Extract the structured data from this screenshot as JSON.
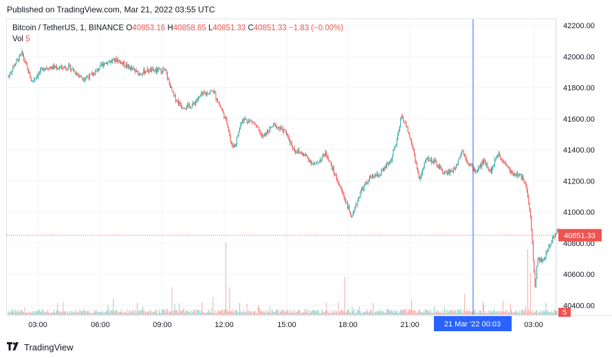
{
  "header": {
    "published": "Published on TradingView.com, Mar 21, 2022 03:55 UTC"
  },
  "legend": {
    "symbol": "Bitcoin / TetherUS, 1, BINANCE",
    "o_label": "O",
    "o_value": "40853.16",
    "h_label": "H",
    "h_value": "40858.65",
    "l_label": "L",
    "l_value": "40851.33",
    "c_label": "C",
    "c_value": "40851.33",
    "change": "−1.83 (−0.00%)",
    "vol_label": "Vol",
    "vol_value": "5"
  },
  "footer": {
    "brand": "TradingView",
    "logo_icon": "tradingview-logo-icon"
  },
  "colors": {
    "up": "#26a69a",
    "down": "#ef5350",
    "crosshair": "#2962ff",
    "last_price": "#ef5350"
  },
  "chart_data": {
    "type": "candlestick",
    "title": "Bitcoin / TetherUS, 1, BINANCE",
    "interval": "1",
    "exchange": "BINANCE",
    "ylim": [
      40340,
      42240
    ],
    "y_ticks": [
      "42200.00",
      "42000.00",
      "41800.00",
      "41600.00",
      "41400.00",
      "41200.00",
      "41000.00",
      "40800.00",
      "40600.00",
      "40400.00"
    ],
    "x_ticks": [
      "03:00",
      "06:00",
      "09:00",
      "12:00",
      "15:00",
      "18:00",
      "21:00",
      "03:00"
    ],
    "last_price": "40851.33",
    "last_volume": "5",
    "crosshair_label": "21 Mar '22   00:03",
    "grid": true,
    "price_path": [
      [
        0,
        41870
      ],
      [
        8,
        41940
      ],
      [
        20,
        42020
      ],
      [
        34,
        41840
      ],
      [
        52,
        41930
      ],
      [
        72,
        41930
      ],
      [
        90,
        41930
      ],
      [
        108,
        41860
      ],
      [
        122,
        41880
      ],
      [
        140,
        41960
      ],
      [
        158,
        41980
      ],
      [
        176,
        41930
      ],
      [
        190,
        41890
      ],
      [
        202,
        41910
      ],
      [
        216,
        41910
      ],
      [
        228,
        41910
      ],
      [
        240,
        41750
      ],
      [
        252,
        41680
      ],
      [
        266,
        41680
      ],
      [
        280,
        41750
      ],
      [
        298,
        41780
      ],
      [
        312,
        41640
      ],
      [
        320,
        41550
      ],
      [
        324,
        41430
      ],
      [
        330,
        41430
      ],
      [
        340,
        41600
      ],
      [
        356,
        41580
      ],
      [
        370,
        41480
      ],
      [
        386,
        41560
      ],
      [
        402,
        41520
      ],
      [
        416,
        41400
      ],
      [
        430,
        41370
      ],
      [
        446,
        41300
      ],
      [
        462,
        41380
      ],
      [
        476,
        41230
      ],
      [
        490,
        41080
      ],
      [
        500,
        40960
      ],
      [
        512,
        41130
      ],
      [
        526,
        41220
      ],
      [
        540,
        41240
      ],
      [
        556,
        41330
      ],
      [
        566,
        41470
      ],
      [
        572,
        41620
      ],
      [
        580,
        41540
      ],
      [
        590,
        41380
      ],
      [
        598,
        41200
      ],
      [
        608,
        41350
      ],
      [
        620,
        41320
      ],
      [
        634,
        41250
      ],
      [
        648,
        41270
      ],
      [
        660,
        41400
      ],
      [
        670,
        41310
      ],
      [
        680,
        41260
      ],
      [
        692,
        41330
      ],
      [
        702,
        41260
      ],
      [
        712,
        41380
      ],
      [
        722,
        41320
      ],
      [
        732,
        41250
      ],
      [
        742,
        41240
      ],
      [
        752,
        41200
      ],
      [
        760,
        40950
      ],
      [
        766,
        40520
      ],
      [
        770,
        40700
      ],
      [
        778,
        40680
      ],
      [
        786,
        40780
      ],
      [
        794,
        40850
      ],
      [
        798,
        40880
      ],
      [
        803,
        40851.33
      ]
    ]
  }
}
